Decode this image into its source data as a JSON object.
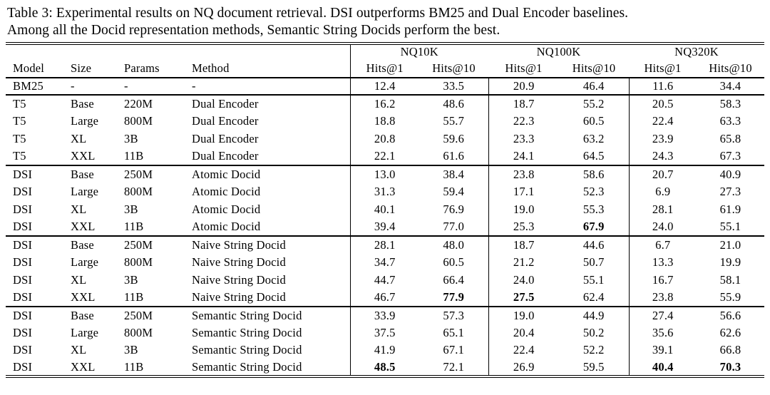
{
  "caption": {
    "line1": "Table 3: Experimental results on NQ document retrieval. DSI outperforms BM25 and Dual Encoder baselines.",
    "line2": "Among all the Docid representation methods, Semantic String Docids perform the best."
  },
  "colors": {
    "text": "#000000",
    "background": "#ffffff",
    "rule": "#000000"
  },
  "table": {
    "group_headers": [
      "NQ10K",
      "NQ100K",
      "NQ320K"
    ],
    "column_headers": [
      "Model",
      "Size",
      "Params",
      "Method"
    ],
    "metric_headers": [
      "Hits@1",
      "Hits@10",
      "Hits@1",
      "Hits@10",
      "Hits@1",
      "Hits@10"
    ],
    "rows": [
      {
        "model": "BM25",
        "size": "-",
        "params": "-",
        "method": "-",
        "values": [
          "12.4",
          "33.5",
          "20.9",
          "46.4",
          "11.6",
          "34.4"
        ],
        "bold": [],
        "section_end": true
      },
      {
        "model": "T5",
        "size": "Base",
        "params": "220M",
        "method": "Dual Encoder",
        "values": [
          "16.2",
          "48.6",
          "18.7",
          "55.2",
          "20.5",
          "58.3"
        ],
        "bold": [],
        "section_end": false
      },
      {
        "model": "T5",
        "size": "Large",
        "params": "800M",
        "method": "Dual Encoder",
        "values": [
          "18.8",
          "55.7",
          "22.3",
          "60.5",
          "22.4",
          "63.3"
        ],
        "bold": [],
        "section_end": false
      },
      {
        "model": "T5",
        "size": "XL",
        "params": "3B",
        "method": "Dual Encoder",
        "values": [
          "20.8",
          "59.6",
          "23.3",
          "63.2",
          "23.9",
          "65.8"
        ],
        "bold": [],
        "section_end": false
      },
      {
        "model": "T5",
        "size": "XXL",
        "params": "11B",
        "method": "Dual Encoder",
        "values": [
          "22.1",
          "61.6",
          "24.1",
          "64.5",
          "24.3",
          "67.3"
        ],
        "bold": [],
        "section_end": true
      },
      {
        "model": "DSI",
        "size": "Base",
        "params": "250M",
        "method": "Atomic Docid",
        "values": [
          "13.0",
          "38.4",
          "23.8",
          "58.6",
          "20.7",
          "40.9"
        ],
        "bold": [],
        "section_end": false
      },
      {
        "model": "DSI",
        "size": "Large",
        "params": "800M",
        "method": "Atomic Docid",
        "values": [
          "31.3",
          "59.4",
          "17.1",
          "52.3",
          "6.9",
          "27.3"
        ],
        "bold": [],
        "section_end": false
      },
      {
        "model": "DSI",
        "size": "XL",
        "params": "3B",
        "method": "Atomic Docid",
        "values": [
          "40.1",
          "76.9",
          "19.0",
          "55.3",
          "28.1",
          "61.9"
        ],
        "bold": [],
        "section_end": false
      },
      {
        "model": "DSI",
        "size": "XXL",
        "params": "11B",
        "method": "Atomic Docid",
        "values": [
          "39.4",
          "77.0",
          "25.3",
          "67.9",
          "24.0",
          "55.1"
        ],
        "bold": [
          3
        ],
        "section_end": true
      },
      {
        "model": "DSI",
        "size": "Base",
        "params": "250M",
        "method": "Naive String Docid",
        "values": [
          "28.1",
          "48.0",
          "18.7",
          "44.6",
          "6.7",
          "21.0"
        ],
        "bold": [],
        "section_end": false
      },
      {
        "model": "DSI",
        "size": "Large",
        "params": "800M",
        "method": "Naive String Docid",
        "values": [
          "34.7",
          "60.5",
          "21.2",
          "50.7",
          "13.3",
          "19.9"
        ],
        "bold": [],
        "section_end": false
      },
      {
        "model": "DSI",
        "size": "XL",
        "params": "3B",
        "method": "Naive String Docid",
        "values": [
          "44.7",
          "66.4",
          "24.0",
          "55.1",
          "16.7",
          "58.1"
        ],
        "bold": [],
        "section_end": false
      },
      {
        "model": "DSI",
        "size": "XXL",
        "params": "11B",
        "method": "Naive String Docid",
        "values": [
          "46.7",
          "77.9",
          "27.5",
          "62.4",
          "23.8",
          "55.9"
        ],
        "bold": [
          1,
          2
        ],
        "section_end": true
      },
      {
        "model": "DSI",
        "size": "Base",
        "params": "250M",
        "method": "Semantic String Docid",
        "values": [
          "33.9",
          "57.3",
          "19.0",
          "44.9",
          "27.4",
          "56.6"
        ],
        "bold": [],
        "section_end": false
      },
      {
        "model": "DSI",
        "size": "Large",
        "params": "800M",
        "method": "Semantic String Docid",
        "values": [
          "37.5",
          "65.1",
          "20.4",
          "50.2",
          "35.6",
          "62.6"
        ],
        "bold": [],
        "section_end": false
      },
      {
        "model": "DSI",
        "size": "XL",
        "params": "3B",
        "method": "Semantic String Docid",
        "values": [
          "41.9",
          "67.1",
          "22.4",
          "52.2",
          "39.1",
          "66.8"
        ],
        "bold": [],
        "section_end": false
      },
      {
        "model": "DSI",
        "size": "XXL",
        "params": "11B",
        "method": "Semantic String Docid",
        "values": [
          "48.5",
          "72.1",
          "26.9",
          "59.5",
          "40.4",
          "70.3"
        ],
        "bold": [
          0,
          4,
          5
        ],
        "section_end": false
      }
    ]
  }
}
